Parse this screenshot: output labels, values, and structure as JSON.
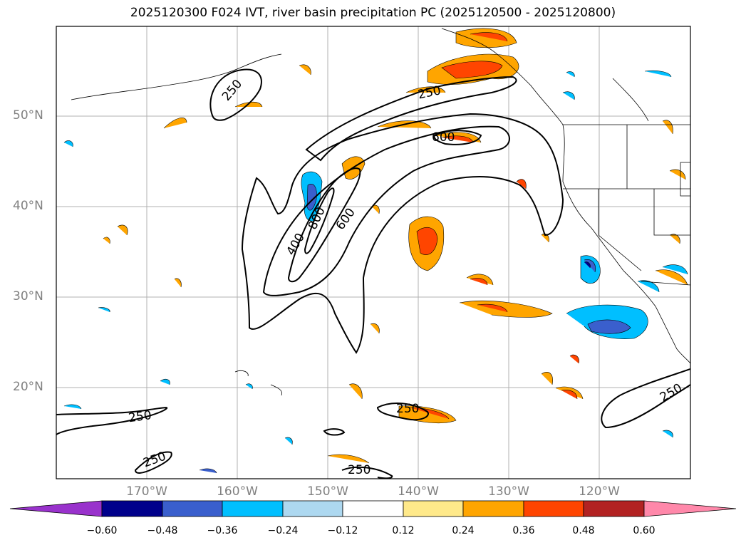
{
  "title": "2025120300 F024 IVT, river basin precipitation PC (2025120500 - 2025120800)",
  "map": {
    "lat_labels": [
      "50°N",
      "40°N",
      "30°N",
      "20°N"
    ],
    "lon_labels": [
      "170°W",
      "160°W",
      "150°W",
      "140°W",
      "130°W",
      "120°W"
    ],
    "contour_labels": [
      "250",
      "250",
      "600",
      "400",
      "600",
      "800",
      "250",
      "250",
      "250",
      "250",
      "250"
    ]
  },
  "colorbar": {
    "colors": [
      "#9932cc",
      "#00008b",
      "#3a5fcd",
      "#00bfff",
      "#add8f0",
      "#ffffff",
      "#ffe98a",
      "#ffa500",
      "#ff4500",
      "#b22222",
      "#ff88aa"
    ],
    "ticks": [
      "−0.60",
      "−0.48",
      "−0.36",
      "−0.24",
      "−0.12",
      "0.12",
      "0.24",
      "0.36",
      "0.48",
      "0.60"
    ]
  }
}
